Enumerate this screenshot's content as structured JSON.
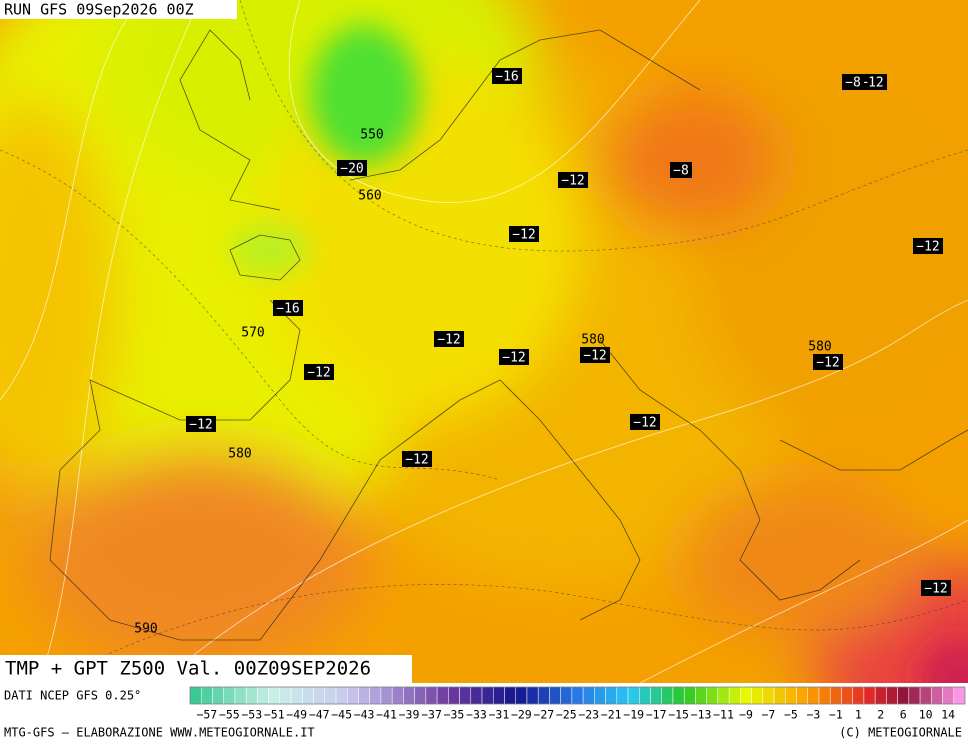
{
  "header": {
    "run": "RUN GFS 09Sep2026 00Z"
  },
  "map": {
    "temperature_labels": [
      "−16",
      "−12",
      "−8",
      "−20",
      "−12",
      "−12",
      "−12",
      "−16",
      "−12",
      "−12",
      "−12",
      "−12",
      "−12",
      "−12",
      "−12",
      "−12",
      "−12",
      "−8"
    ],
    "height_labels": [
      "550",
      "560",
      "570",
      "580",
      "580",
      "580",
      "590"
    ]
  },
  "title": "TMP + GPT Z500 Val. 00Z09SEP2026",
  "legend": {
    "source": "DATI NCEP GFS 0.25°",
    "scale_labels": [
      "−57",
      "−55",
      "−53",
      "−51",
      "−49",
      "−47",
      "−45",
      "−43",
      "−41",
      "−39",
      "−37",
      "−35",
      "−33",
      "−31",
      "−29",
      "−27",
      "−25",
      "−23",
      "−21",
      "−19",
      "−17",
      "−15",
      "−13",
      "−11",
      "−9",
      "−7",
      "−5",
      "−3",
      "−1",
      "1",
      "2",
      "6",
      "10",
      "14"
    ]
  },
  "footer": {
    "credit": "MTG-GFS – ELABORAZIONE WWW.METEOGIORNALE.IT",
    "copyright": "(C) METEOGIORNALE"
  }
}
